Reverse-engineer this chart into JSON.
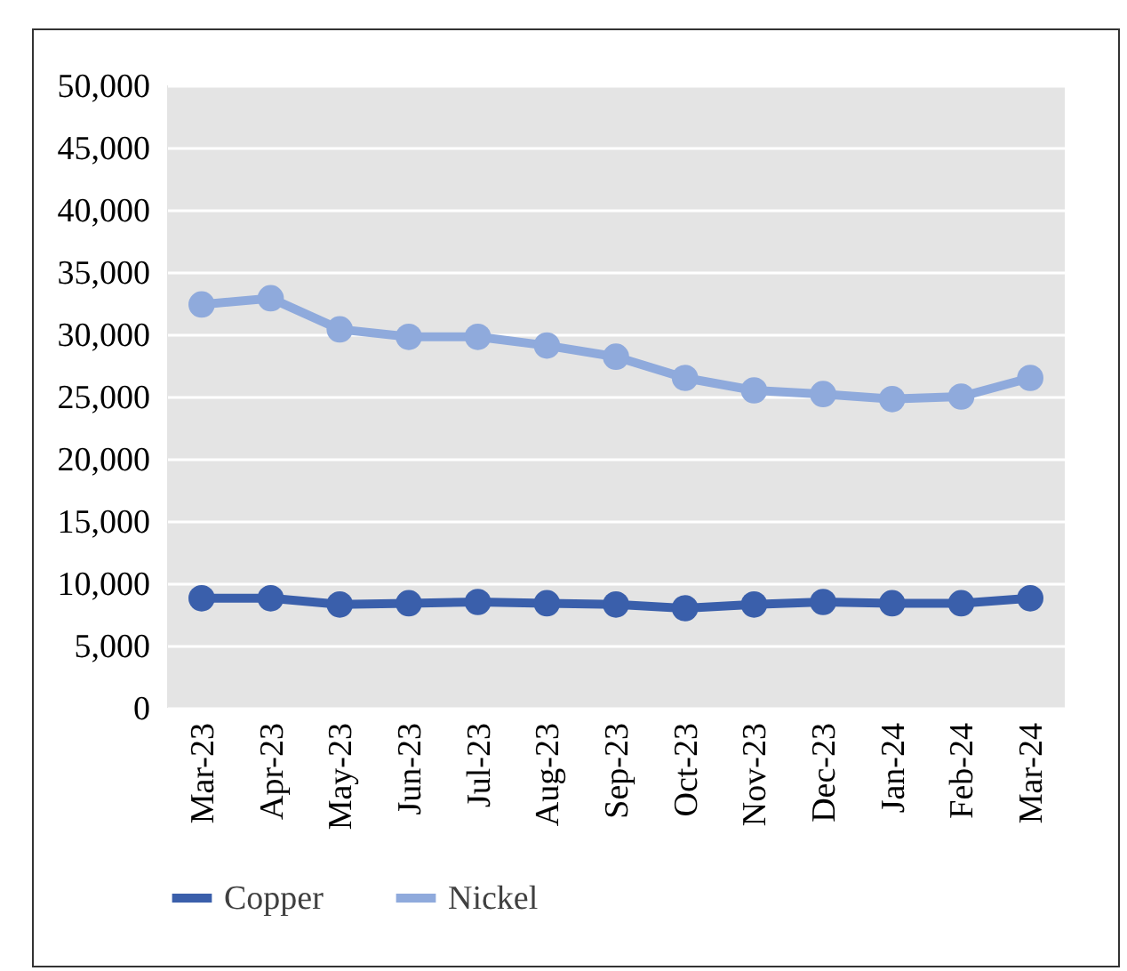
{
  "chart_data": {
    "type": "line",
    "categories": [
      "Mar-23",
      "Apr-23",
      "May-23",
      "Jun-23",
      "Jul-23",
      "Aug-23",
      "Sep-23",
      "Oct-23",
      "Nov-23",
      "Dec-23",
      "Jan-24",
      "Feb-24",
      "Mar-24"
    ],
    "series": [
      {
        "name": "Copper",
        "color": "#3a5fab",
        "values": [
          8800,
          8800,
          8300,
          8400,
          8500,
          8400,
          8300,
          8000,
          8300,
          8500,
          8400,
          8400,
          8800
        ]
      },
      {
        "name": "Nickel",
        "color": "#8faadc",
        "values": [
          32400,
          32900,
          30400,
          29800,
          29800,
          29100,
          28200,
          26500,
          25500,
          25200,
          24800,
          25000,
          26500
        ]
      }
    ],
    "ylim": [
      0,
      50000
    ],
    "yticks": [
      {
        "value": 0,
        "label": "0"
      },
      {
        "value": 5000,
        "label": "5,000"
      },
      {
        "value": 10000,
        "label": "10,000"
      },
      {
        "value": 15000,
        "label": "15,000"
      },
      {
        "value": 20000,
        "label": "20,000"
      },
      {
        "value": 25000,
        "label": "25,000"
      },
      {
        "value": 30000,
        "label": "30,000"
      },
      {
        "value": 35000,
        "label": "35,000"
      },
      {
        "value": 40000,
        "label": "40,000"
      },
      {
        "value": 45000,
        "label": "45,000"
      },
      {
        "value": 50000,
        "label": "50,000"
      }
    ],
    "grid": "y",
    "legend": "bottom",
    "marker": "circle",
    "line_style": "solid"
  }
}
